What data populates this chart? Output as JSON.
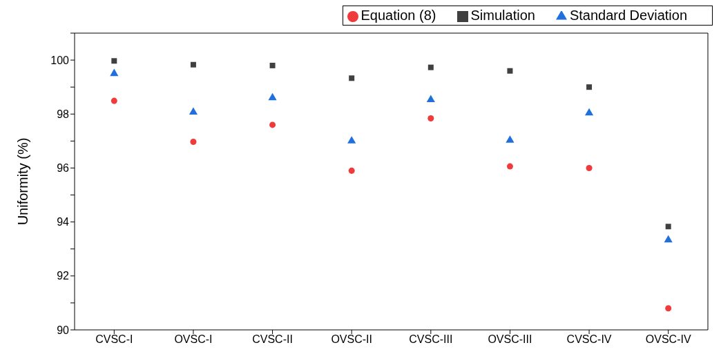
{
  "chart_data": {
    "type": "scatter",
    "ylabel": "Uniformity (%)",
    "categories": [
      "CVSC-I",
      "OVSC-I",
      "CVSC-II",
      "OVSC-II",
      "CVSC-III",
      "OVSC-III",
      "CVSC-IV",
      "OVSC-IV"
    ],
    "series": [
      {
        "name": "Simulation",
        "color": "#404040",
        "marker": "square",
        "values": [
          99.97,
          99.83,
          99.8,
          99.33,
          99.73,
          99.6,
          99.0,
          93.83
        ]
      },
      {
        "name": "Equation (8)",
        "color": "#ef3b3b",
        "marker": "circle",
        "values": [
          98.49,
          96.97,
          97.6,
          95.9,
          97.84,
          96.06,
          96.0,
          90.8
        ]
      },
      {
        "name": "Standard Deviation",
        "color": "#1f6fdc",
        "marker": "triangle",
        "values": [
          99.5,
          98.07,
          98.6,
          97.0,
          98.53,
          97.03,
          98.04,
          93.33
        ]
      }
    ],
    "ylim": [
      90,
      101
    ],
    "yticks": [
      90,
      {
        "value": 91,
        "label": null
      },
      92,
      {
        "value": 93,
        "label": null
      },
      94,
      {
        "value": 95,
        "label": null
      },
      96,
      {
        "value": 97,
        "label": null
      },
      98,
      {
        "value": 99,
        "label": null
      },
      100,
      {
        "value": 101,
        "label": null
      }
    ],
    "grid": false,
    "legend": "top right"
  }
}
